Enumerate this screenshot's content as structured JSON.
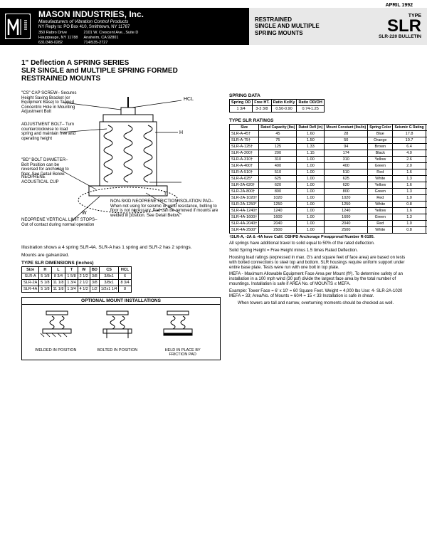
{
  "date": "APRIL 1992",
  "company": {
    "name": "MASON INDUSTRIES, Inc.",
    "tagline": "Manufacturers of Vibration Control Products",
    "reply": "NY Reply to: PO Box 410, Smithtown, NY 11787",
    "addr1a": "350 Rabro Drive",
    "addr1b": "Hauppauge, NY 11788",
    "addr1c": "631/348-0282",
    "addr1d": "FAX 631/348-0279",
    "addr1e": "Info@Mason-Ind.com",
    "addr2a": "2101 W. Crescent Ave., Suite D",
    "addr2b": "Anaheim, CA 92801",
    "addr2c": "714/535-2727",
    "addr2d": "FAX 714/535-5738",
    "addr2e": "Info@MasonAnaheim"
  },
  "titlebox": {
    "l1": "RESTRAINED",
    "l2": "SINGLE AND MULTIPLE",
    "l3": "SPRING MOUNTS",
    "type": "TYPE",
    "code": "SLR",
    "bulletin": "SLR-220 BULLETIN"
  },
  "main_heading": "1\" Deflection  A SPRING SERIES\nSLR SINGLE and MULTIPLE SPRING FORMED RESTRAINED MOUNTS",
  "callouts": {
    "cs": "\"CS\" CAP SCREW– Secures Height Saving Bracket (or Equipment Base) to Tapped Concentric Hole in Mounting Adjustment Bolt",
    "hcl": "HCL",
    "adj": "ADJUSTMENT BOLT– Turn counterclockwise to load spring and maintain free and operating height",
    "h": "H",
    "bd": "\"BD\" BOLT DIAMETER– Bolt Position can be reversed for anchoring to floor. See Detail Below.",
    "l": "L",
    "t": "T",
    "neo_cup": "NEOPRENE ACOUSTICAL CUP",
    "w": "W",
    "friction": "NON-SKID NEOPRENE FRICTION ISOLATION PAD– When not using for seismic or wind resistance, bolting to floor is not necessary. Pad can be removed if mounts are welded in position. See Detail Below.",
    "stops": "NEOPRENE VERTICAL LIMIT STOPS– Out of contact during normal operation"
  },
  "caption1": "Illustration shows a 4 spring SLR-4A. SLR-A has 1 spring and SLR-2 has 2 springs.",
  "caption2": "Mounts are galvanized.",
  "dim_table": {
    "title": "TYPE SLR DIMENSIONS (inches)",
    "cols": [
      "Size",
      "H",
      "L",
      "T",
      "W",
      "BD",
      "CS",
      "HCL"
    ],
    "rows": [
      [
        "SLR-A",
        "5 1/8",
        "8 3/4",
        "1 5/8",
        "2 1/2",
        "3/8",
        "3/8x1",
        "6"
      ],
      [
        "SLR-2A",
        "5 1/8",
        "11 1/8",
        "1 3/4",
        "2 1/2",
        "3/8",
        "3/8x1",
        "8 3/4"
      ],
      [
        "SLR-4A",
        "5 1/8",
        "11 1/8",
        "1 3/4",
        "4 1/2",
        "1/2",
        "1/2x1 1/4",
        "8"
      ]
    ]
  },
  "optional": {
    "title": "OPTIONAL MOUNT INSTALLATIONS",
    "l1": "WELDED IN POSITION",
    "l2": "BOLTED IN POSITION",
    "l3": "HELD IN PLACE BY FRICTION PAD"
  },
  "spring_data": {
    "title": "SPRING DATA",
    "cols": [
      "Spring OD",
      "Free HT.",
      "Ratio Kx/Ky",
      "Ratio OD/OH"
    ],
    "row": [
      "1 3/4",
      "3-3 3/8",
      "0.50-0.90",
      "0.74-1.25"
    ]
  },
  "ratings": {
    "title": "TYPE SLR RATINGS",
    "cols": [
      "Size",
      "Rated Capacity (lbs)",
      "Rated Defl (in)",
      "Mount Constant (lbs/in)",
      "Spring Color",
      "Seismic G Rating",
      "MEFA 3 (ft²)"
    ],
    "rows": [
      [
        "SLR-A-45†",
        "45",
        "1.60",
        "28",
        "Blue",
        "17.8",
        "27"
      ],
      [
        "SLR-A-75†",
        "75",
        "1.50",
        "50",
        "Orange",
        "10.7",
        "27"
      ],
      [
        "SLR-A-125†",
        "125",
        "1.33",
        "94",
        "Brown",
        "6.4",
        "27"
      ],
      [
        "SLR-A-200†",
        "200",
        "1.15",
        "174",
        "Black",
        "4.0",
        "27"
      ],
      [
        "SLR-A-310†",
        "310",
        "1.00",
        "310",
        "Yellow",
        "2.6",
        "27"
      ],
      [
        "SLR-A-400†",
        "400",
        "1.00",
        "400",
        "Green",
        "2.0",
        "27"
      ],
      [
        "SLR-A-510†",
        "510",
        "1.00",
        "510",
        "Red",
        "1.6",
        "27"
      ],
      [
        "SLR-A-625*",
        "625",
        "1.00",
        "625",
        "White",
        "1.3",
        "27"
      ],
      [
        "SLR-2A-620†",
        "620",
        "1.00",
        "620",
        "Yellow",
        "1.6",
        "33"
      ],
      [
        "SLR-2A-800†",
        "800",
        "1.00",
        "800",
        "Green",
        "1.3",
        "33"
      ],
      [
        "SLR-2A-1020†",
        "1020",
        "1.00",
        "1020",
        "Red",
        "1.0",
        "33"
      ],
      [
        "SLR-2A-1250*",
        "1250",
        "1.00",
        "1250",
        "White",
        "0.8",
        "33"
      ],
      [
        "SLR-4A-1240†",
        "1240",
        "1.00",
        "1240",
        "Yellow",
        "1.6",
        "67"
      ],
      [
        "SLR-4A-1600†",
        "1600",
        "1.00",
        "1600",
        "Green",
        "1.3",
        "67"
      ],
      [
        "SLR-4A-2040†",
        "2040",
        "1.00",
        "2040",
        "Red",
        "1.0",
        "67"
      ],
      [
        "SLR-4A-2500*",
        "2500",
        "1.00",
        "2500",
        "White",
        "0.8",
        "67"
      ]
    ]
  },
  "notes": {
    "n1": "†SLR-A, -2A & -4A have Calif. OSHPD Anchorage Preapproval Number R-0195.",
    "n2": "All springs have additional travel to solid equal to 50% of the rated deflection.",
    "n3": "Solid Spring Height = Free Height minus 1.5 times Rated Deflection.",
    "n4": "Housing load ratings (expressed in max. G's and square feet of face area) are based on tests with bolted connections to steel top and bottom. SLR housings require uniform support under entire base plate. Tests were run with one bolt in top plate.",
    "n5": "MEFA - Maximum Allowable Equipment Face Area per Mount (ft²). To determine safety of an installation in a 100 mph wind (30 psf) divide the largest face area by the total number of mountings. Installation is safe if AREA No. of MOUNTS ≤ MEFA.",
    "n6": "Example: Tower Face = 6' x 10' = 60 Square Feet. Weight = 4,000 lbs Use: 4- SLR-2A-1020  MEFA = 33; Area/No. of Mounts = 60/4 = 15 < 33  Installation is safe in shear.",
    "n7": "When towers are tall and narrow, overturning moments should be checked as well."
  }
}
